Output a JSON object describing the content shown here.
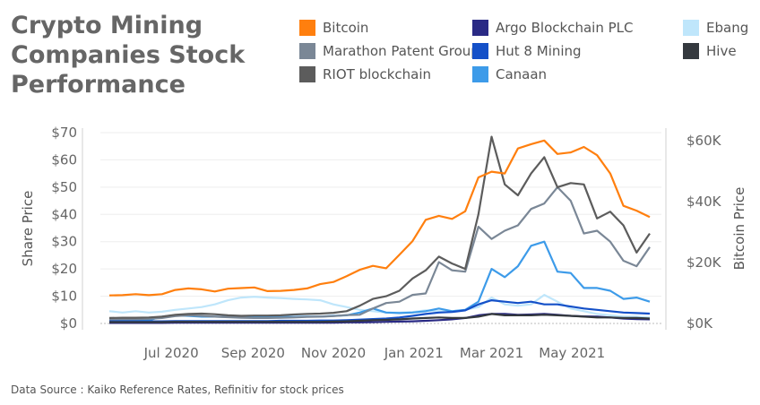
{
  "title": "Crypto Mining Companies Stock Performance",
  "title_lines": [
    "Crypto Mining",
    "Companies Stock",
    "Performance"
  ],
  "source_note": "Data Source : Kaiko Reference Rates, Refinitiv for stock prices",
  "colors": {
    "Bitcoin": "#ff7f0e",
    "Marathon Patent Group": "#7a8796",
    "RIOT blockchain": "#5c5c5c",
    "Argo Blockchain PLC": "#2a2a85",
    "Hut 8 Mining": "#1450c8",
    "Canaan": "#3d9be9",
    "Ebang": "#bfe6fb",
    "Hive": "#34393e"
  },
  "legend": [
    {
      "label": "Bitcoin"
    },
    {
      "label": "Marathon Patent Group"
    },
    {
      "label": "RIOT blockchain"
    },
    {
      "label": "Argo Blockchain PLC"
    },
    {
      "label": "Hut 8 Mining"
    },
    {
      "label": "Canaan"
    },
    {
      "label": "Ebang"
    },
    {
      "label": "Hive"
    }
  ],
  "chart_data": {
    "type": "line",
    "title": "Crypto Mining Companies Stock Performance",
    "xlabel": "",
    "ylabel": "Share Price",
    "y2label": "Bitcoin Price",
    "ylim": [
      0,
      70
    ],
    "y2lim": [
      0,
      62.6
    ],
    "yticks": [
      "$0",
      "$10",
      "$20",
      "$30",
      "$40",
      "$50",
      "$60",
      "$70"
    ],
    "y2ticks": [
      "$0K",
      "$20K",
      "$40K",
      "$60K"
    ],
    "xticks": [
      "Jul 2020",
      "Sep 2020",
      "Nov 2020",
      "Jan 2021",
      "Mar 2021",
      "May 2021"
    ],
    "grid": true,
    "legend_position": "top-right",
    "x": [
      "2020-05-15",
      "2020-05-25",
      "2020-06-04",
      "2020-06-14",
      "2020-06-24",
      "2020-07-04",
      "2020-07-14",
      "2020-07-24",
      "2020-08-03",
      "2020-08-13",
      "2020-08-23",
      "2020-09-02",
      "2020-09-12",
      "2020-09-22",
      "2020-10-02",
      "2020-10-12",
      "2020-10-22",
      "2020-11-01",
      "2020-11-11",
      "2020-11-21",
      "2020-12-01",
      "2020-12-11",
      "2020-12-21",
      "2020-12-31",
      "2021-01-10",
      "2021-01-20",
      "2021-01-30",
      "2021-02-09",
      "2021-02-19",
      "2021-03-01",
      "2021-03-11",
      "2021-03-21",
      "2021-03-31",
      "2021-04-10",
      "2021-04-20",
      "2021-04-30",
      "2021-05-10",
      "2021-05-20",
      "2021-05-30",
      "2021-06-09",
      "2021-06-19",
      "2021-06-29"
    ],
    "series": [
      {
        "name": "Bitcoin",
        "axis": "right",
        "values": [
          9.2,
          9.3,
          9.6,
          9.3,
          9.6,
          11.0,
          11.5,
          11.2,
          10.5,
          11.4,
          11.6,
          11.8,
          10.6,
          10.7,
          11.0,
          11.5,
          12.9,
          13.6,
          15.5,
          17.6,
          18.9,
          18.1,
          22.5,
          27.0,
          34.0,
          35.3,
          34.3,
          36.8,
          47.9,
          49.8,
          49.2,
          57.4,
          58.8,
          60.0,
          55.6,
          56.1,
          57.9,
          55.2,
          49.2,
          38.6,
          37.0,
          34.9
        ]
      },
      {
        "name": "Marathon Patent Group",
        "axis": "left",
        "values": [
          1.5,
          1.6,
          1.6,
          1.7,
          2.0,
          2.7,
          3.0,
          2.8,
          2.5,
          2.3,
          2.1,
          2.0,
          2.0,
          2.1,
          2.2,
          2.4,
          2.5,
          2.7,
          3.1,
          3.2,
          5.5,
          7.5,
          8.0,
          10.5,
          11.0,
          22.5,
          19.5,
          19.0,
          35.5,
          31.0,
          34.0,
          36.0,
          42.0,
          44.0,
          50.0,
          45.0,
          33.0,
          34.0,
          30.0,
          23.0,
          21.0,
          28.0
        ]
      },
      {
        "name": "RIOT blockchain",
        "axis": "left",
        "values": [
          2.0,
          2.1,
          2.1,
          2.2,
          2.5,
          3.2,
          3.5,
          3.6,
          3.4,
          3.0,
          2.8,
          2.9,
          2.9,
          3.0,
          3.3,
          3.5,
          3.6,
          3.9,
          4.5,
          6.5,
          9.0,
          10.0,
          12.0,
          16.5,
          19.5,
          24.5,
          22.0,
          20.0,
          40.0,
          68.5,
          51.0,
          47.0,
          55.0,
          61.0,
          50.0,
          51.5,
          51.0,
          38.5,
          41.0,
          36.0,
          26.0,
          33.0
        ]
      },
      {
        "name": "Argo Blockchain PLC",
        "axis": "left",
        "values": [
          0.2,
          0.2,
          0.2,
          0.2,
          0.2,
          0.3,
          0.3,
          0.3,
          0.3,
          0.3,
          0.3,
          0.3,
          0.3,
          0.3,
          0.3,
          0.3,
          0.3,
          0.3,
          0.4,
          0.4,
          0.5,
          0.6,
          0.7,
          0.8,
          1.0,
          1.2,
          1.5,
          2.0,
          3.0,
          3.5,
          3.5,
          3.2,
          3.3,
          3.5,
          3.2,
          2.8,
          2.6,
          2.5,
          2.2,
          1.8,
          1.6,
          1.5
        ]
      },
      {
        "name": "Hut 8 Mining",
        "axis": "left",
        "values": [
          0.8,
          0.8,
          0.8,
          0.8,
          0.8,
          0.9,
          0.9,
          0.9,
          0.9,
          0.9,
          0.9,
          0.9,
          0.9,
          1.0,
          1.0,
          1.0,
          1.1,
          1.1,
          1.2,
          1.4,
          1.6,
          1.8,
          2.2,
          2.8,
          3.5,
          4.0,
          4.2,
          4.8,
          7.0,
          8.5,
          8.0,
          7.5,
          8.0,
          7.0,
          7.0,
          6.2,
          5.5,
          5.0,
          4.5,
          4.0,
          3.8,
          3.6
        ]
      },
      {
        "name": "Canaan",
        "axis": "left",
        "values": [
          1.0,
          1.1,
          1.1,
          1.2,
          2.5,
          3.0,
          2.8,
          2.5,
          2.5,
          2.4,
          2.3,
          2.3,
          2.3,
          2.4,
          2.4,
          2.5,
          2.5,
          2.8,
          3.0,
          4.0,
          5.5,
          4.0,
          3.8,
          4.0,
          4.5,
          5.5,
          4.5,
          5.0,
          8.0,
          20.0,
          17.0,
          21.0,
          28.5,
          30.0,
          19.0,
          18.5,
          13.0,
          13.0,
          12.0,
          9.0,
          9.5,
          8.0
        ]
      },
      {
        "name": "Ebang",
        "axis": "left",
        "values": [
          4.5,
          4.0,
          4.5,
          4.0,
          4.3,
          5.0,
          5.5,
          6.0,
          7.0,
          8.5,
          9.5,
          9.8,
          9.5,
          9.3,
          9.0,
          8.8,
          8.5,
          7.0,
          6.0,
          5.0,
          4.5,
          4.0,
          4.0,
          4.2,
          4.8,
          4.5,
          4.5,
          5.0,
          6.0,
          9.5,
          7.0,
          6.5,
          7.0,
          10.5,
          8.0,
          5.5,
          4.5,
          3.5,
          3.0,
          2.5,
          2.5,
          2.2
        ]
      },
      {
        "name": "Hive",
        "axis": "left",
        "values": [
          0.5,
          0.5,
          0.5,
          0.5,
          0.5,
          0.6,
          0.6,
          0.6,
          0.6,
          0.6,
          0.6,
          0.6,
          0.6,
          0.6,
          0.6,
          0.6,
          0.6,
          0.7,
          0.8,
          1.0,
          1.2,
          1.3,
          1.5,
          1.8,
          2.0,
          2.2,
          2.0,
          2.0,
          2.5,
          3.5,
          3.0,
          3.0,
          3.0,
          3.2,
          3.0,
          2.8,
          2.5,
          2.2,
          2.2,
          2.0,
          2.0,
          1.8
        ]
      }
    ]
  }
}
